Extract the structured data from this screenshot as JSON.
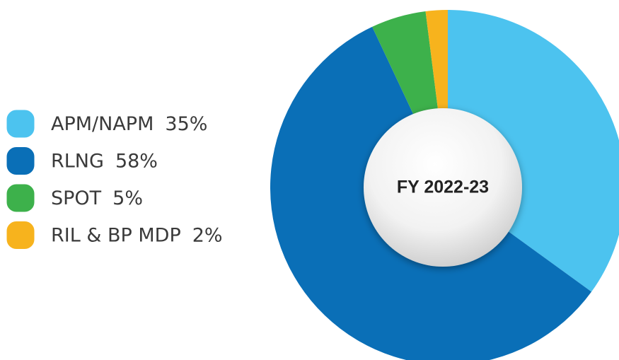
{
  "chart_data": {
    "type": "donut",
    "title": "FY 2022-23",
    "categories": [
      "APM/NAPM",
      "RLNG",
      "SPOT",
      "RIL & BP MDP"
    ],
    "values": [
      35,
      58,
      5,
      2
    ],
    "value_labels": [
      "35%",
      "58%",
      "5%",
      "2%"
    ],
    "colors": [
      "#4cc3ef",
      "#0a6fb7",
      "#3db14b",
      "#f7b31d"
    ],
    "legend": "left"
  }
}
